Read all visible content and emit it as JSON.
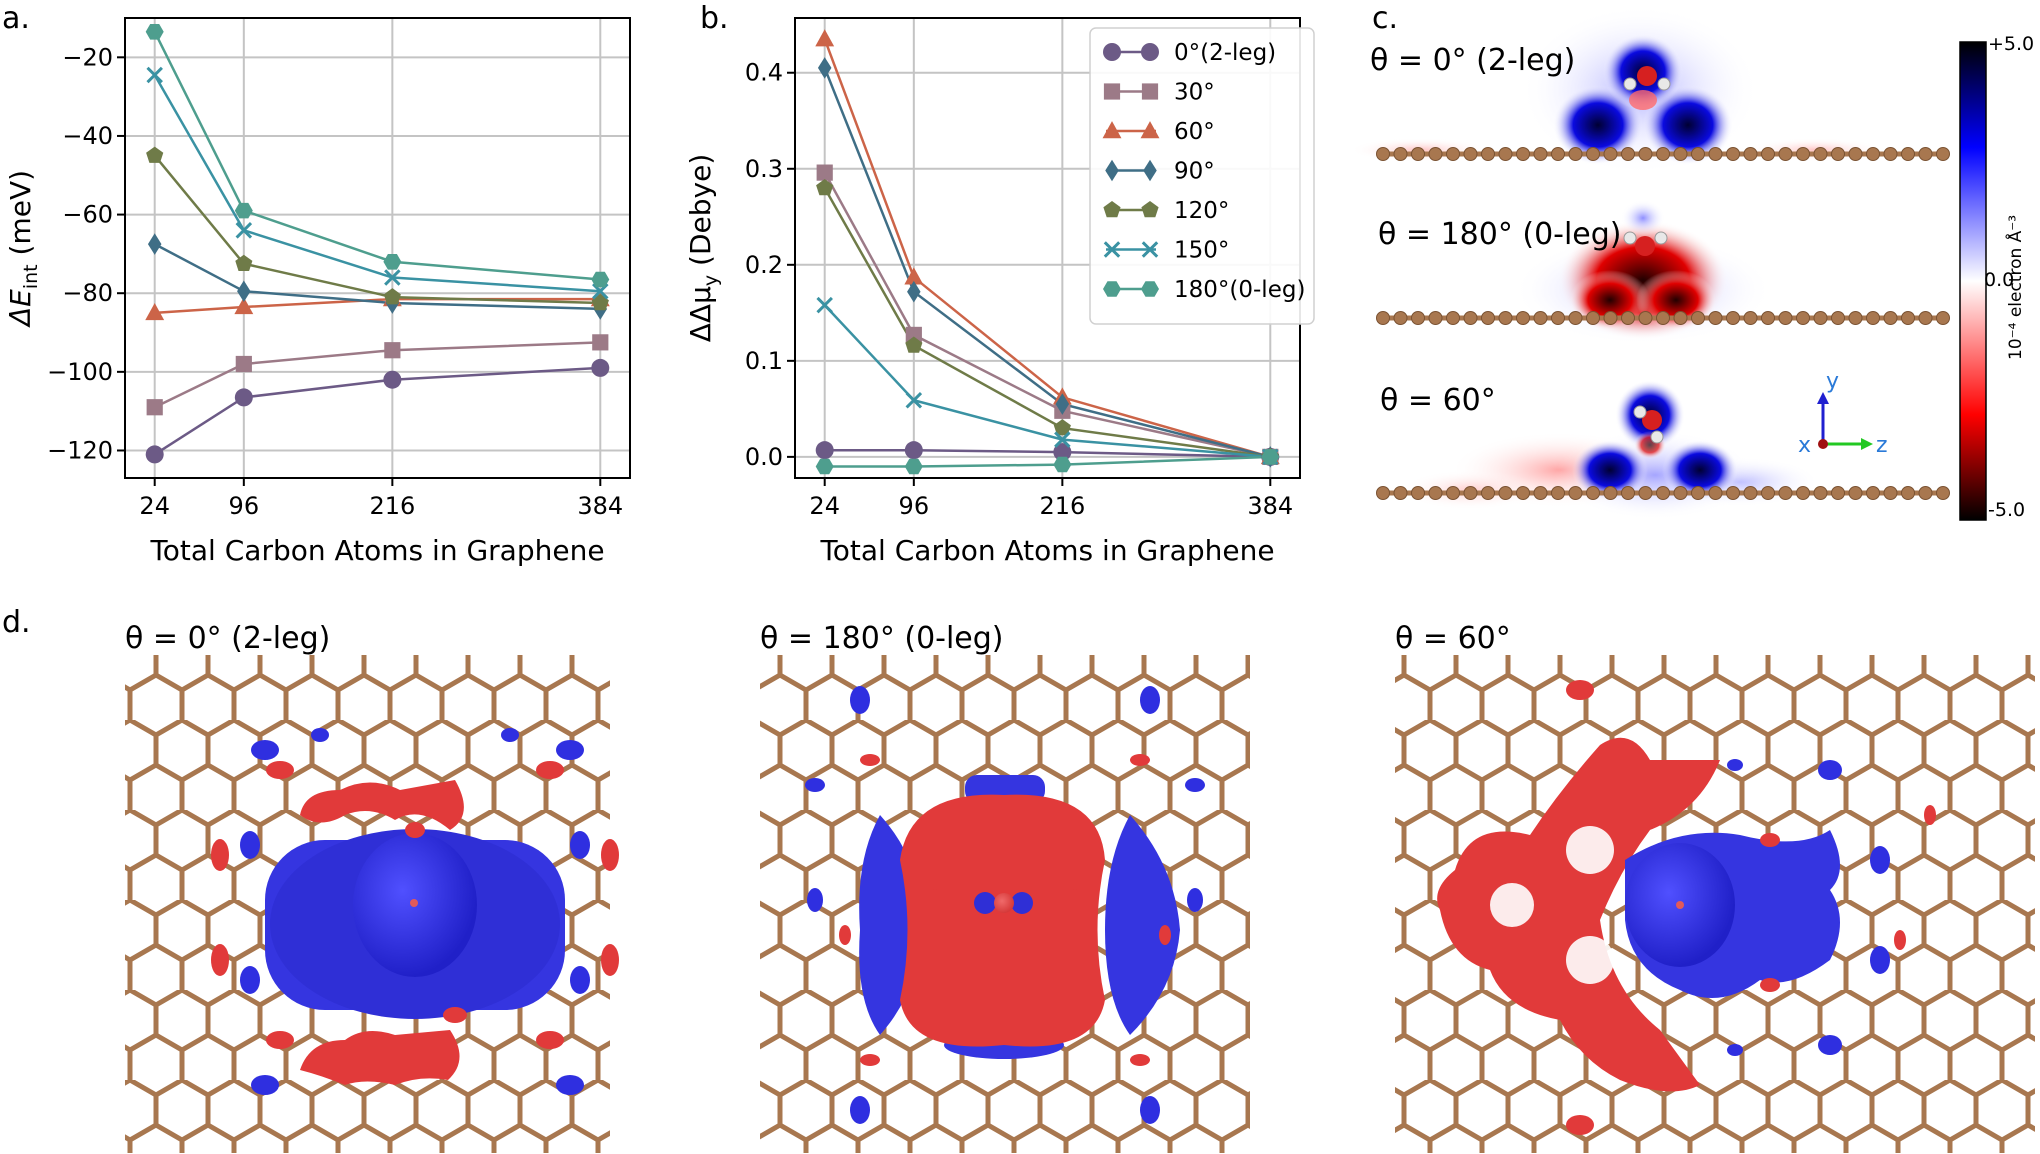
{
  "panel_labels": {
    "a": "a.",
    "b": "b.",
    "c": "c.",
    "d": "d."
  },
  "colors": {
    "s0": "#6c5a86",
    "s30": "#9c7a87",
    "s60": "#cc6448",
    "s90": "#3f6e86",
    "s120": "#6f7b48",
    "s150": "#3a92a3",
    "s180": "#4e9e8e",
    "grid": "#c4c4c4",
    "carbon": "#a8774f",
    "pos_blue": "#2626e6",
    "neg_red": "#e13a3a"
  },
  "chart_data": [
    {
      "id": "a",
      "type": "line",
      "title": "",
      "xlabel": "Total Carbon Atoms in Graphene",
      "ylabel_main": "ΔE",
      "ylabel_sub": "int",
      "ylabel_unit": " (meV)",
      "x": [
        24,
        96,
        216,
        384
      ],
      "xticks": [
        "24",
        "96",
        "216",
        "384"
      ],
      "xlim": [
        0,
        408
      ],
      "ylim": [
        -127,
        -10
      ],
      "yticks": [
        -20,
        -40,
        -60,
        -80,
        -100,
        -120
      ],
      "ytick_labels": [
        "−20",
        "−40",
        "−60",
        "−80",
        "−100",
        "−120"
      ],
      "grid": true,
      "series": [
        {
          "name": "0°(2-leg)",
          "marker": "circle",
          "color": "#6c5a86",
          "values": [
            -121,
            -106.5,
            -102,
            -99
          ]
        },
        {
          "name": "30°",
          "marker": "square",
          "color": "#9c7a87",
          "values": [
            -109,
            -98,
            -94.5,
            -92.5
          ]
        },
        {
          "name": "60°",
          "marker": "triangle",
          "color": "#cc6448",
          "values": [
            -85,
            -83.5,
            -81.5,
            -81.5
          ]
        },
        {
          "name": "90°",
          "marker": "diamond",
          "color": "#3f6e86",
          "values": [
            -67.5,
            -79.5,
            -82.5,
            -84
          ]
        },
        {
          "name": "120°",
          "marker": "pentagon",
          "color": "#6f7b48",
          "values": [
            -45,
            -72.5,
            -81,
            -82.5
          ]
        },
        {
          "name": "150°",
          "marker": "x",
          "color": "#3a92a3",
          "values": [
            -24.5,
            -64,
            -76,
            -79.5
          ]
        },
        {
          "name": "180°(0-leg)",
          "marker": "hexagon",
          "color": "#4e9e8e",
          "values": [
            -13.5,
            -59,
            -72,
            -76.5
          ]
        }
      ]
    },
    {
      "id": "b",
      "type": "line",
      "title": "",
      "xlabel": "Total Carbon Atoms in Graphene",
      "ylabel_main": "ΔΔμ",
      "ylabel_sub": "y",
      "ylabel_unit": " (Debye)",
      "x": [
        24,
        96,
        216,
        384
      ],
      "xticks": [
        "24",
        "96",
        "216",
        "384"
      ],
      "xlim": [
        0,
        408
      ],
      "ylim": [
        -0.022,
        0.457
      ],
      "yticks": [
        0.0,
        0.1,
        0.2,
        0.3,
        0.4
      ],
      "ytick_labels": [
        "0.0",
        "0.1",
        "0.2",
        "0.3",
        "0.4"
      ],
      "grid": true,
      "legend_position": "top-right",
      "series": [
        {
          "name": "0°(2-leg)",
          "marker": "circle",
          "color": "#6c5a86",
          "values": [
            0.007,
            0.007,
            0.005,
            0.0
          ]
        },
        {
          "name": "30°",
          "marker": "square",
          "color": "#9c7a87",
          "values": [
            0.296,
            0.127,
            0.048,
            0.0
          ]
        },
        {
          "name": "60°",
          "marker": "triangle",
          "color": "#cc6448",
          "values": [
            0.435,
            0.187,
            0.062,
            0.0
          ]
        },
        {
          "name": "90°",
          "marker": "diamond",
          "color": "#3f6e86",
          "values": [
            0.405,
            0.172,
            0.055,
            0.0
          ]
        },
        {
          "name": "120°",
          "marker": "pentagon",
          "color": "#6f7b48",
          "values": [
            0.28,
            0.116,
            0.03,
            0.0
          ]
        },
        {
          "name": "150°",
          "marker": "x",
          "color": "#3a92a3",
          "values": [
            0.158,
            0.059,
            0.018,
            0.0
          ]
        },
        {
          "name": "180°(0-leg)",
          "marker": "hexagon",
          "color": "#4e9e8e",
          "values": [
            -0.01,
            -0.01,
            -0.008,
            0.0
          ]
        }
      ]
    }
  ],
  "panel_c": {
    "labels": [
      "θ = 0° (2-leg)",
      "θ = 180° (0-leg)",
      "θ = 60°"
    ],
    "colorbar": {
      "max_label": "+5.0",
      "mid_label": "0.0",
      "min_label": "-5.0",
      "unit_label": "10⁻⁴ electron Å⁻³"
    },
    "axes": {
      "y": "y",
      "x": "x",
      "z": "z"
    }
  },
  "panel_d": {
    "labels": [
      "θ = 0° (2-leg)",
      "θ = 180° (0-leg)",
      "θ = 60°"
    ]
  }
}
